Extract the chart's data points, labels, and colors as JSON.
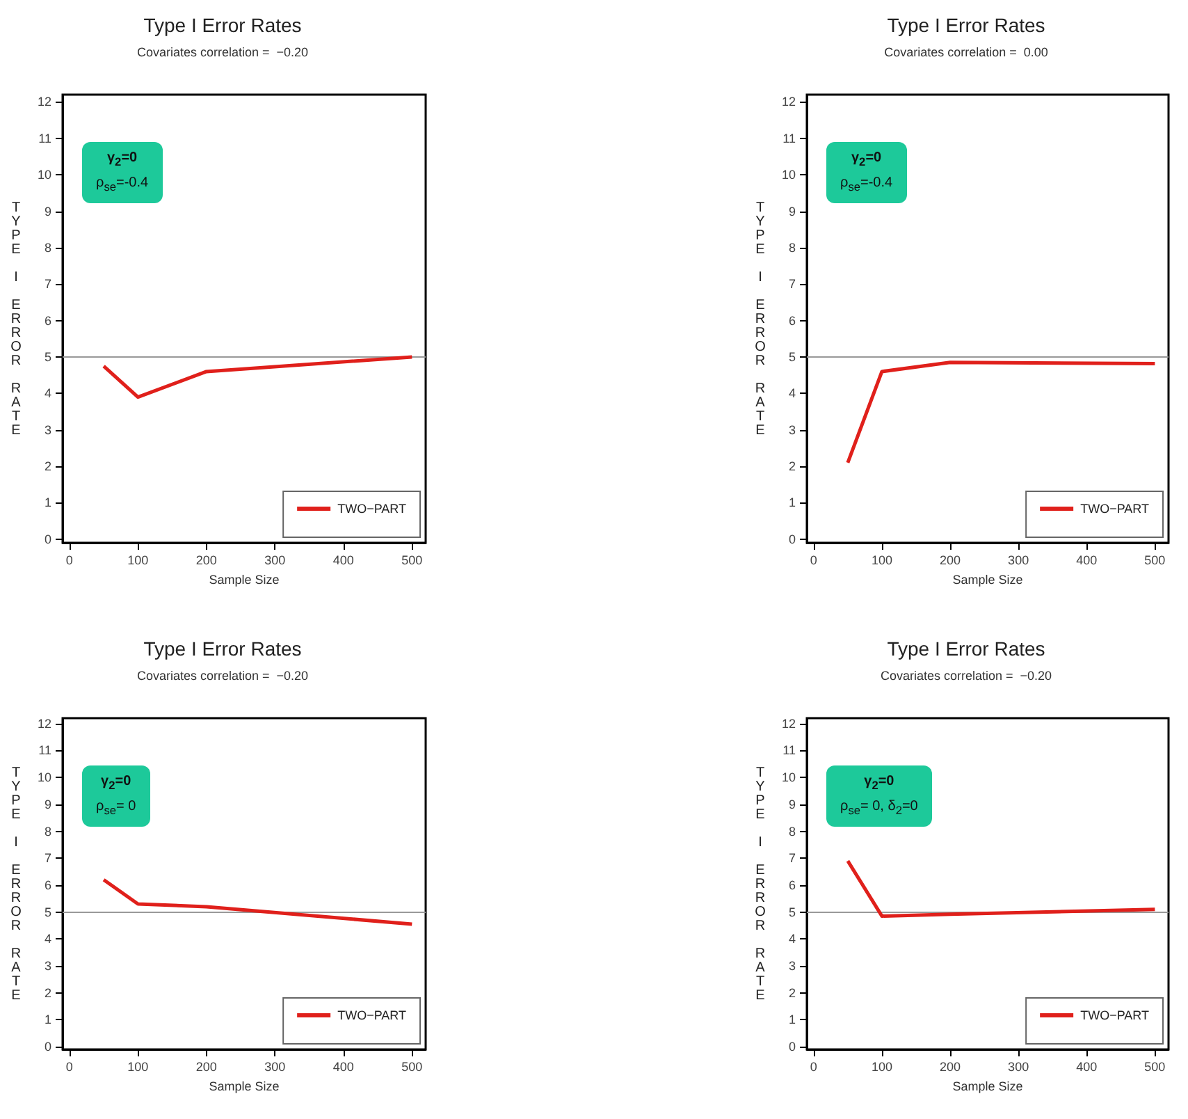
{
  "chart_data": [
    {
      "type": "line",
      "title": "Type I Error Rates",
      "subtitle": "Covariates correlation =  −0.20",
      "xlabel": "Sample Size",
      "ylabel": "TYPE I ERROR RATE",
      "annotations": [
        "γ$_{2}$=0",
        "ρ$_{se}$=-0.4"
      ],
      "x": [
        50,
        100,
        200,
        500
      ],
      "series": [
        {
          "name": "TWO−PART",
          "color": "#e0201b",
          "values": [
            4.75,
            3.9,
            4.6,
            5.0
          ]
        }
      ],
      "xlim": [
        -10,
        520
      ],
      "xticks": [
        0,
        100,
        200,
        300,
        400,
        500
      ],
      "ylim": [
        -0.1,
        12.2
      ],
      "yticks": [
        0,
        1,
        2,
        3,
        4,
        5,
        6,
        7,
        8,
        9,
        10,
        11,
        12
      ],
      "ref_lines": [
        {
          "axis": "y",
          "value": 5,
          "color": "#999999"
        }
      ],
      "legend": "bottom right",
      "marker": "none"
    },
    {
      "type": "line",
      "title": "Type I Error Rates",
      "subtitle": "Covariates correlation =  0.00",
      "xlabel": "Sample Size",
      "ylabel": "TYPE I ERROR RATE",
      "annotations": [
        "γ$_{2}$=0",
        "ρ$_{se}$=-0.4"
      ],
      "x": [
        50,
        100,
        200,
        500
      ],
      "series": [
        {
          "name": "TWO−PART",
          "color": "#e0201b",
          "values": [
            2.1,
            4.6,
            4.85,
            4.82
          ]
        }
      ],
      "xlim": [
        -10,
        520
      ],
      "xticks": [
        0,
        100,
        200,
        300,
        400,
        500
      ],
      "ylim": [
        -0.1,
        12.2
      ],
      "yticks": [
        0,
        1,
        2,
        3,
        4,
        5,
        6,
        7,
        8,
        9,
        10,
        11,
        12
      ],
      "ref_lines": [
        {
          "axis": "y",
          "value": 5,
          "color": "#999999"
        }
      ],
      "legend": "bottom right",
      "marker": "none"
    },
    {
      "type": "line",
      "title": "Type I Error Rates",
      "subtitle": "Covariates correlation =  −0.20",
      "xlabel": "Sample Size",
      "ylabel": "TYPE I ERROR RATE",
      "annotations": [
        "γ$_{2}$=0",
        "ρ$_{se}$= 0"
      ],
      "x": [
        50,
        100,
        200,
        500
      ],
      "series": [
        {
          "name": "TWO−PART",
          "color": "#e0201b",
          "values": [
            6.2,
            5.3,
            5.2,
            4.55
          ]
        }
      ],
      "xlim": [
        -10,
        520
      ],
      "xticks": [
        0,
        100,
        200,
        300,
        400,
        500
      ],
      "ylim": [
        -0.1,
        12.2
      ],
      "yticks": [
        0,
        1,
        2,
        3,
        4,
        5,
        6,
        7,
        8,
        9,
        10,
        11,
        12
      ],
      "ref_lines": [
        {
          "axis": "y",
          "value": 5,
          "color": "#999999"
        }
      ],
      "legend": "bottom right",
      "marker": "none"
    },
    {
      "type": "line",
      "title": "Type I Error Rates",
      "subtitle": "Covariates correlation =  −0.20",
      "xlabel": "Sample Size",
      "ylabel": "TYPE I ERROR RATE",
      "annotations": [
        "γ$_{2}$=0",
        "ρ$_{se}$= 0, δ$_{2}$=0"
      ],
      "x": [
        50,
        100,
        200,
        500
      ],
      "series": [
        {
          "name": "TWO−PART",
          "color": "#e0201b",
          "values": [
            6.9,
            4.85,
            4.92,
            5.1
          ]
        }
      ],
      "xlim": [
        -10,
        520
      ],
      "xticks": [
        0,
        100,
        200,
        300,
        400,
        500
      ],
      "ylim": [
        -0.1,
        12.2
      ],
      "yticks": [
        0,
        1,
        2,
        3,
        4,
        5,
        6,
        7,
        8,
        9,
        10,
        11,
        12
      ],
      "ref_lines": [
        {
          "axis": "y",
          "value": 5,
          "color": "#999999"
        }
      ],
      "legend": "bottom right",
      "marker": "none"
    }
  ]
}
